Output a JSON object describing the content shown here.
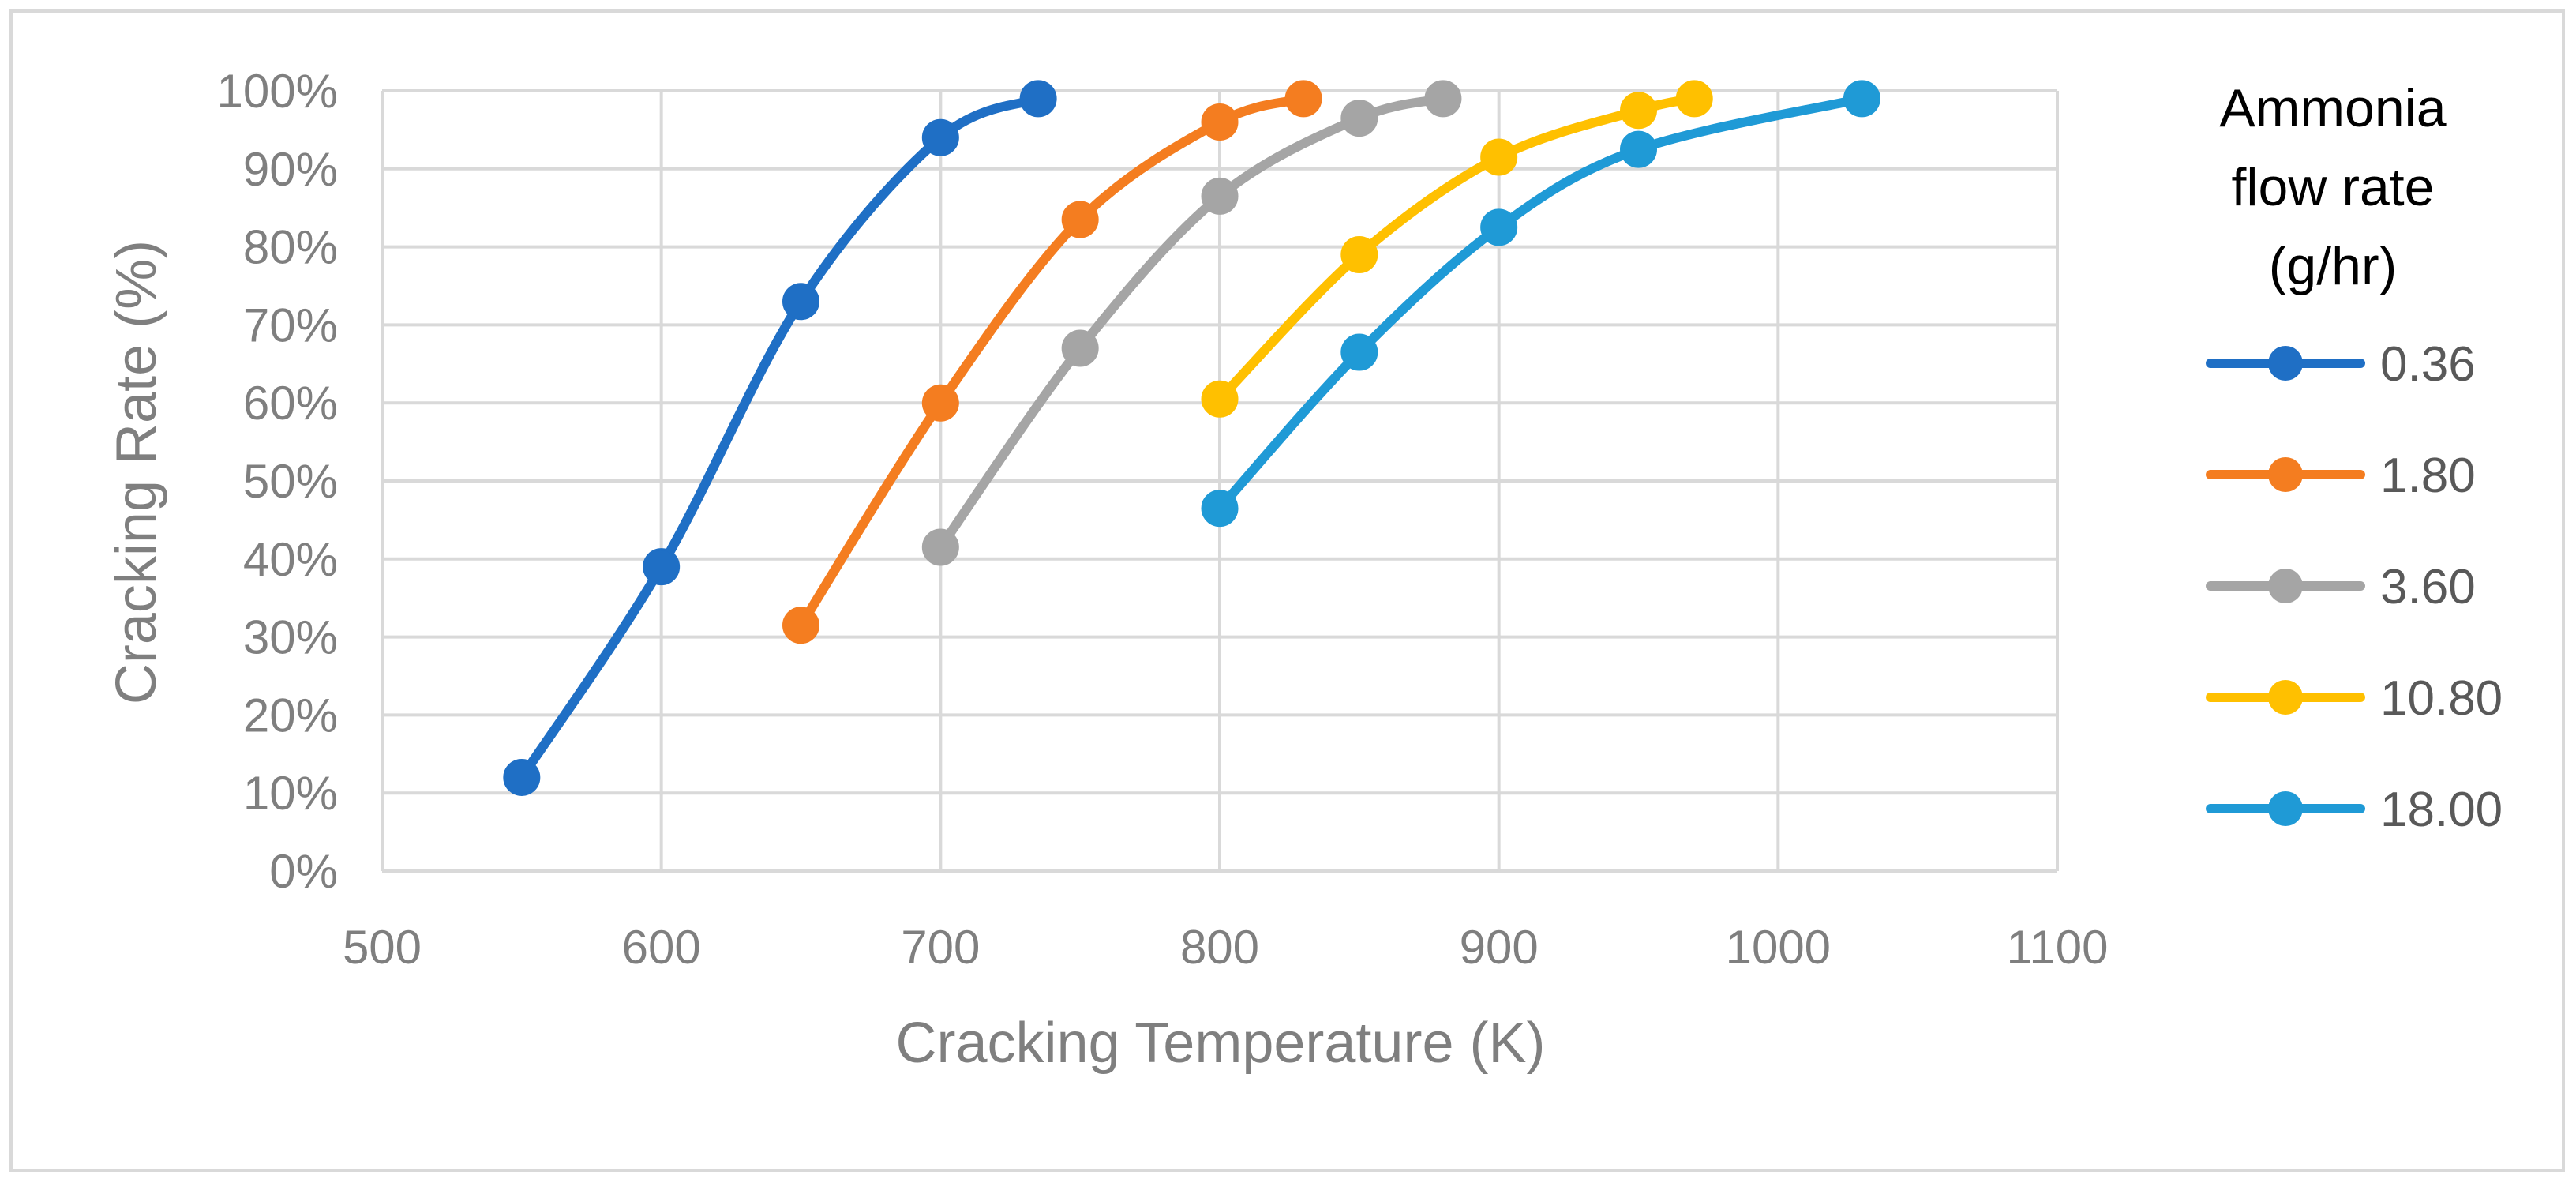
{
  "chart_data": {
    "type": "line",
    "title": "",
    "xlabel": "Cracking Temperature (K)",
    "ylabel": "Cracking Rate (%)",
    "xlim": [
      500,
      1100
    ],
    "ylim": [
      0,
      100
    ],
    "x_ticks": [
      "500",
      "600",
      "700",
      "800",
      "900",
      "1000",
      "1100"
    ],
    "y_ticks": [
      "0%",
      "10%",
      "20%",
      "30%",
      "40%",
      "50%",
      "60%",
      "70%",
      "80%",
      "90%",
      "100%"
    ],
    "grid": true,
    "legend": {
      "position": "right",
      "title_lines": [
        "Ammonia",
        "flow rate",
        "(g/hr)"
      ]
    },
    "series": [
      {
        "name": "0.36",
        "color": "#1f6fc5",
        "x": [
          550,
          600,
          650,
          700,
          735
        ],
        "y": [
          12,
          39,
          73,
          94,
          99
        ]
      },
      {
        "name": "1.80",
        "color": "#f47d20",
        "x": [
          650,
          700,
          750,
          800,
          830
        ],
        "y": [
          31.5,
          60,
          83.5,
          96,
          99
        ]
      },
      {
        "name": "3.60",
        "color": "#a5a5a5",
        "x": [
          700,
          750,
          800,
          850,
          880
        ],
        "y": [
          41.5,
          67,
          86.5,
          96.5,
          99
        ]
      },
      {
        "name": "10.80",
        "color": "#ffc000",
        "x": [
          800,
          850,
          900,
          950,
          970
        ],
        "y": [
          60.5,
          79,
          91.5,
          97.5,
          99
        ]
      },
      {
        "name": "18.00",
        "color": "#1f9ad6",
        "x": [
          800,
          850,
          900,
          950,
          1030
        ],
        "y": [
          46.5,
          66.5,
          82.5,
          92.5,
          99
        ]
      }
    ]
  }
}
